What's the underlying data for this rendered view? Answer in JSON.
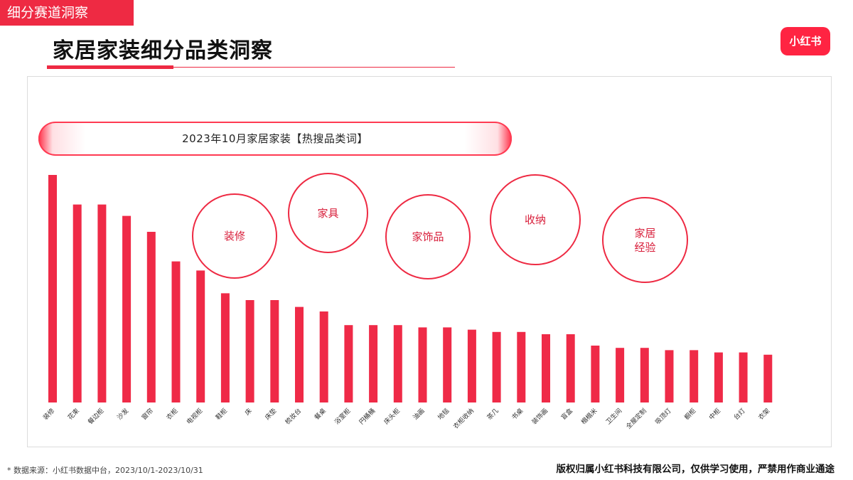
{
  "header": {
    "section_tag": "细分赛道洞察",
    "page_title": "家居家装细分品类洞察",
    "logo_text": "小红书"
  },
  "panel": {
    "subtitle": "2023年10月家居家装【热搜品类词】"
  },
  "circles": [
    {
      "label": "装修"
    },
    {
      "label": "家具"
    },
    {
      "label": "家饰品"
    },
    {
      "label": "收纳"
    },
    {
      "label": "家居\n经验"
    }
  ],
  "chart_data": {
    "type": "bar",
    "title": "2023年10月家居家装【热搜品类词】",
    "categories": [
      "装修",
      "花束",
      "餐边柜",
      "沙发",
      "窗帘",
      "衣柜",
      "电视柜",
      "鞋柜",
      "床",
      "床垫",
      "梳妆台",
      "餐桌",
      "浴室柜",
      "円桶桶",
      "床头柜",
      "油画",
      "地毯",
      "衣柜收纳",
      "茶几",
      "书桌",
      "装饰画",
      "盲盒",
      "榻榻米",
      "卫生间",
      "全屋定制",
      "吸顶灯",
      "橱柜",
      "中柜",
      "台灯",
      "衣架"
    ],
    "values": [
      100,
      87,
      87,
      82,
      75,
      62,
      58,
      48,
      45,
      45,
      42,
      40,
      34,
      34,
      34,
      33,
      33,
      32,
      31,
      31,
      30,
      30,
      25,
      24,
      24,
      23,
      23,
      22,
      22,
      21
    ],
    "ylim": [
      0,
      100
    ],
    "bar_color": "#ef2a47",
    "grid": false
  },
  "footer": {
    "source": "* 数据来源：小红书数据中台，2023/10/1-2023/10/31",
    "copyright": "版权归属小红书科技有限公司，仅供学习使用，严禁用作商业通途"
  }
}
